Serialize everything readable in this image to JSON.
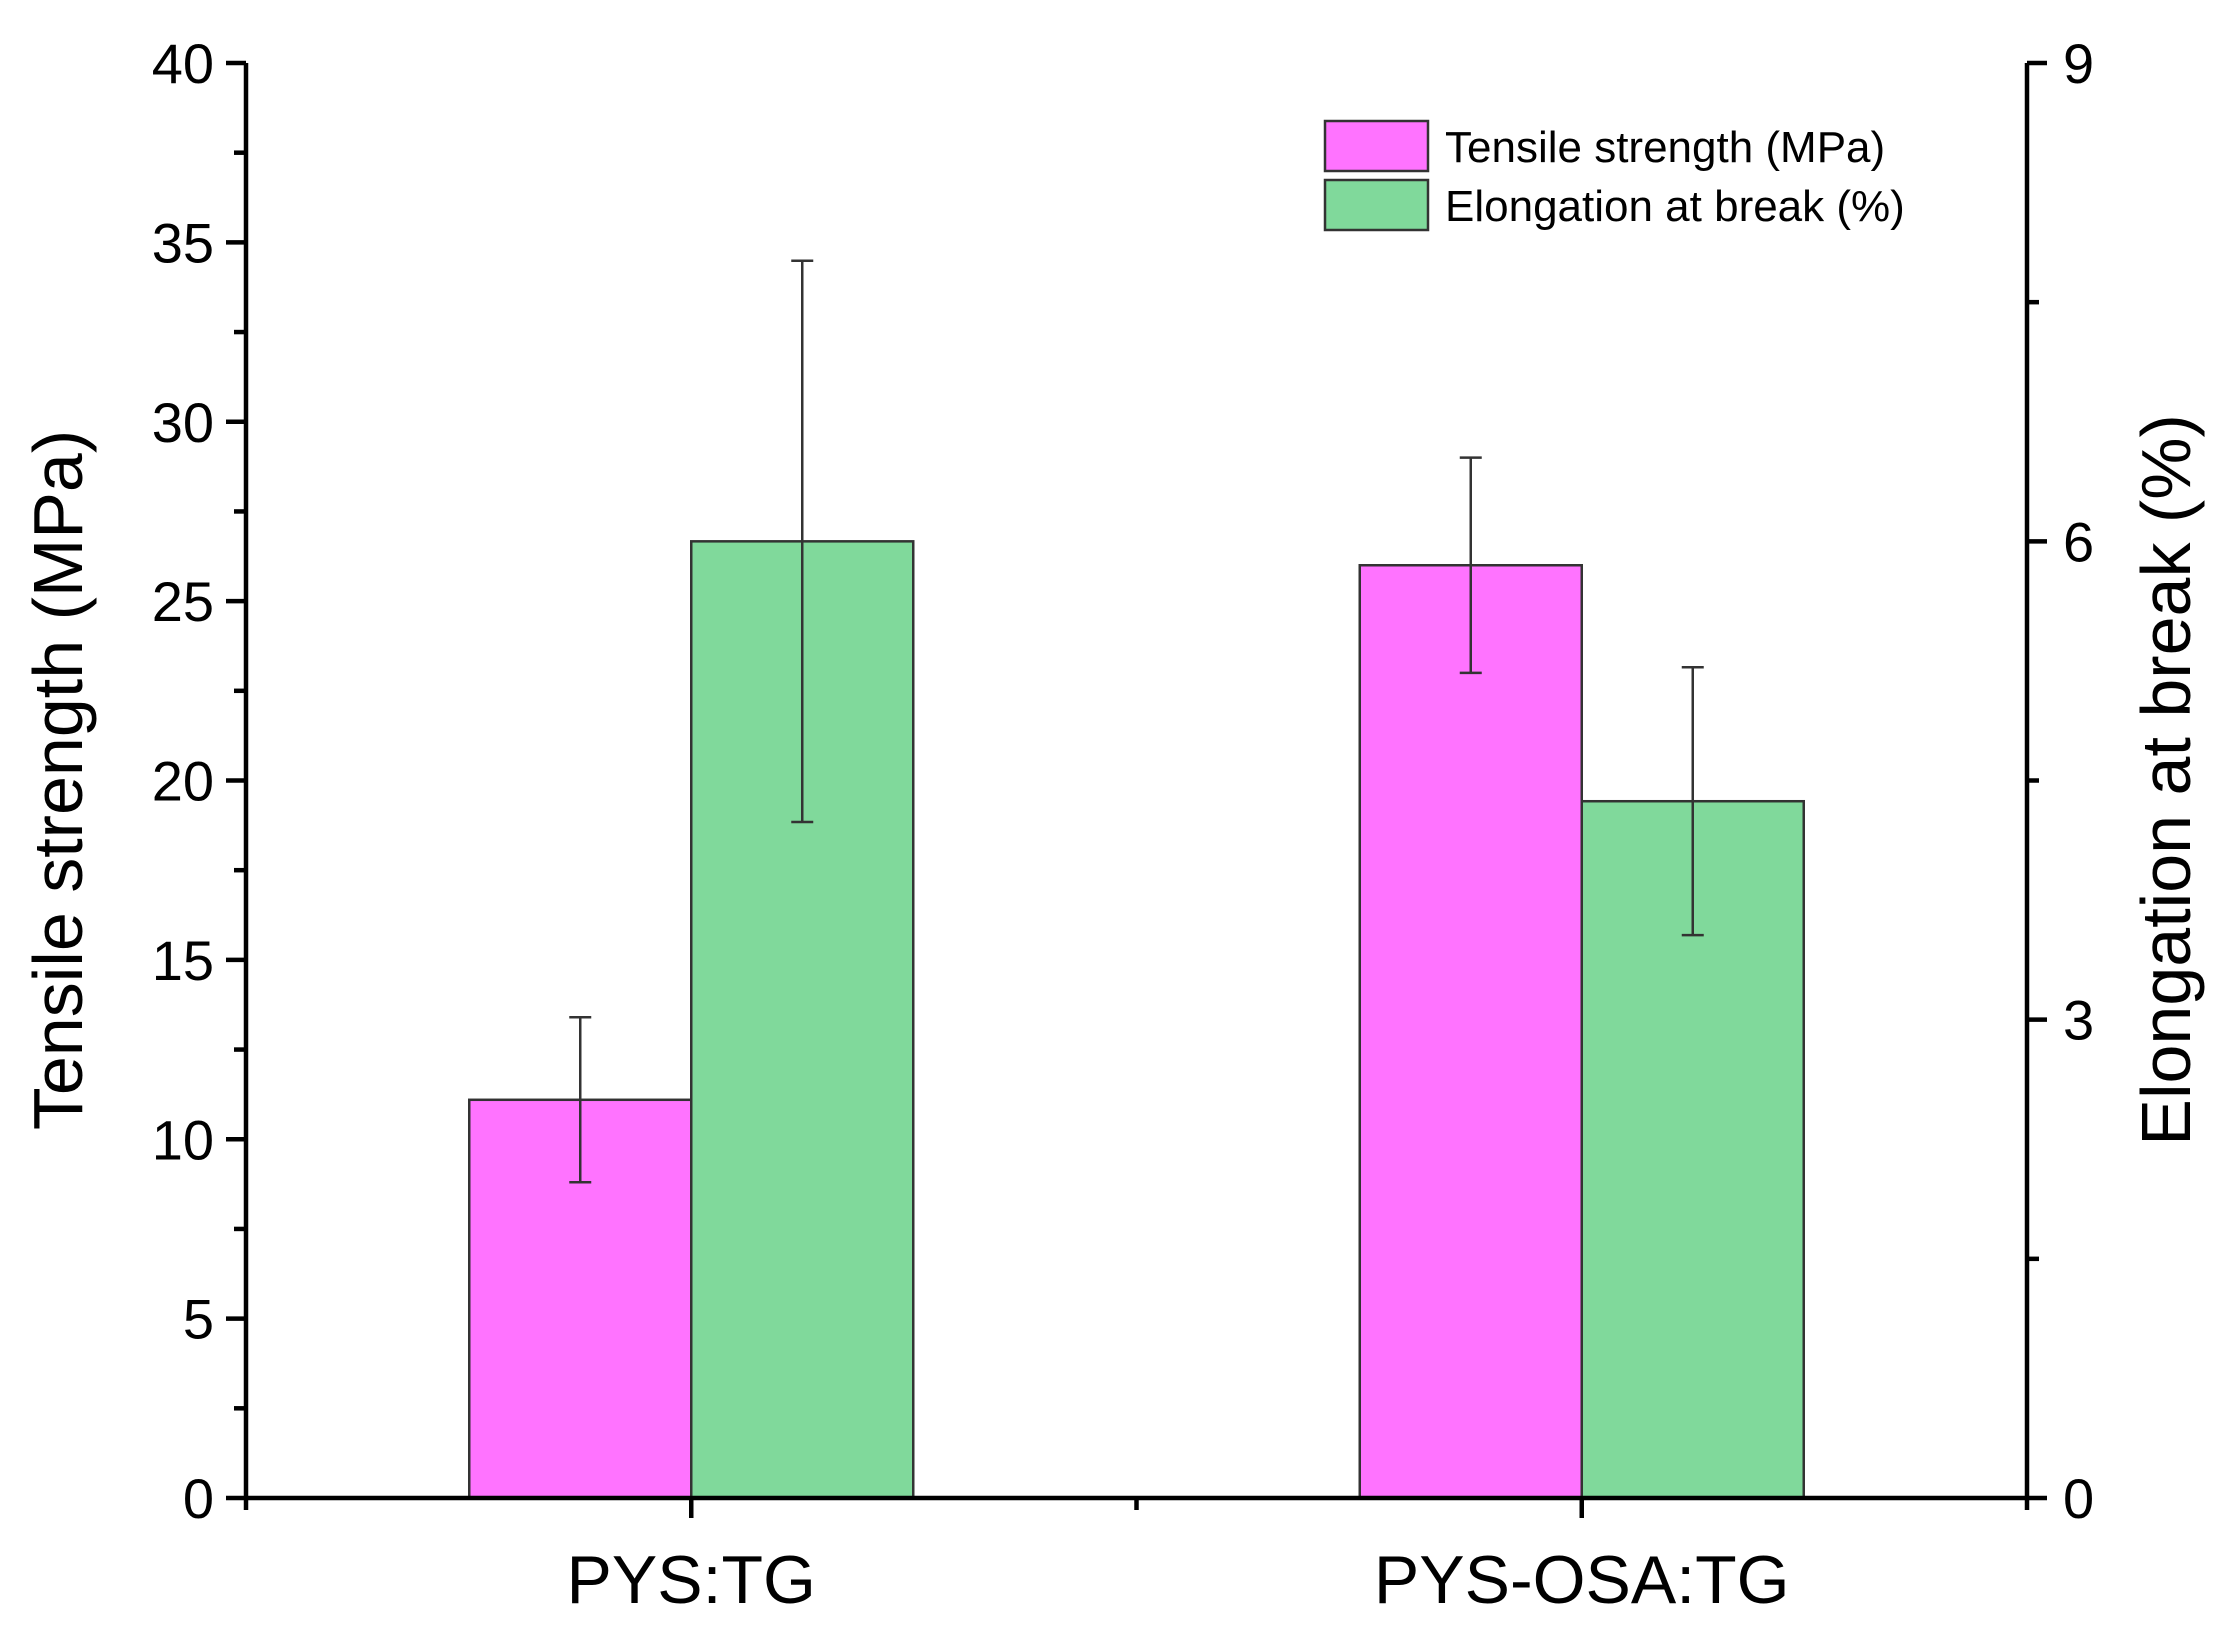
{
  "chart_data": {
    "type": "bar",
    "categories": [
      "PYS:TG",
      "PYS-OSA:TG"
    ],
    "series": [
      {
        "name": "Tensile strength (MPa)",
        "axis": "left",
        "color": "#ff73ff",
        "values": [
          11.1,
          26.0
        ],
        "errors": [
          2.3,
          3.0
        ]
      },
      {
        "name": "Elongation at break (%)",
        "axis": "right",
        "color": "#80d99b",
        "values": [
          6.0,
          4.37
        ],
        "errors": [
          1.76,
          0.84
        ]
      }
    ],
    "ylabel": "Tensile strength (MPa)",
    "y2label": "Elongation at break (%)",
    "ylim": [
      0,
      40
    ],
    "y2lim": [
      0,
      9
    ],
    "yticks": [
      "0",
      "5",
      "10",
      "15",
      "20",
      "25",
      "30",
      "35",
      "40"
    ],
    "y2ticks": [
      "0",
      "3",
      "6",
      "9"
    ],
    "legend_position": "top-right"
  }
}
